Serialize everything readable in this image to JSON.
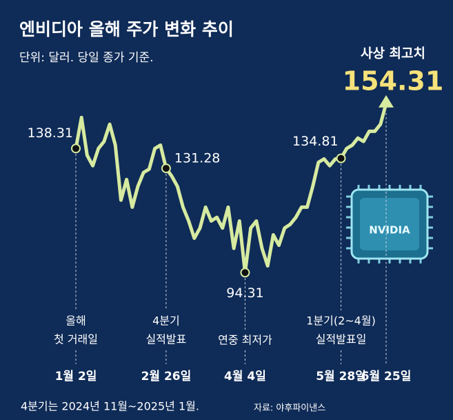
{
  "chart_data": {
    "type": "line",
    "title": "엔비디아 올해 주가 변화 추이",
    "subtitle": "단위: 달러. 당일 종가 기준.",
    "footnote": "4분기는 2024년 11월~2025년 1월.",
    "source": "자료: 야후파이낸스",
    "chip_label": "NVIDIA",
    "color": "#d6eaa0",
    "categories": [
      "1월 2일",
      null,
      null,
      null,
      null,
      null,
      null,
      null,
      null,
      null,
      null,
      null,
      null,
      null,
      null,
      null,
      "2월 26일",
      null,
      null,
      null,
      null,
      null,
      null,
      null,
      null,
      null,
      null,
      null,
      null,
      null,
      "4월 4일",
      null,
      null,
      null,
      null,
      null,
      null,
      null,
      null,
      null,
      null,
      null,
      null,
      null,
      null,
      null,
      null,
      "5월 28일",
      null,
      null,
      null,
      null,
      null,
      null,
      null,
      "6월 25일"
    ],
    "values": [
      138.31,
      149.3,
      135.9,
      132.2,
      138.3,
      140.8,
      146.9,
      139.5,
      120.0,
      127.3,
      117.5,
      124.9,
      129.8,
      131.0,
      138.3,
      139.5,
      131.28,
      128.5,
      124.9,
      117.5,
      112.6,
      106.5,
      110.1,
      117.5,
      112.6,
      113.9,
      110.1,
      117.5,
      102.9,
      112.6,
      94.31,
      110.1,
      112.6,
      102.9,
      96.7,
      107.7,
      104.0,
      110.1,
      111.4,
      113.9,
      117.5,
      117.5,
      124.9,
      133.4,
      134.6,
      132.2,
      134.6,
      134.81,
      138.3,
      139.5,
      142.0,
      140.8,
      144.4,
      144.4,
      146.9,
      154.31
    ],
    "event_labels": [
      [
        "올해",
        "첫 거래일"
      ],
      null,
      null,
      null,
      null,
      null,
      null,
      null,
      null,
      null,
      null,
      null,
      null,
      null,
      null,
      null,
      [
        "4분기",
        "실적발표"
      ],
      null,
      null,
      null,
      null,
      null,
      null,
      null,
      null,
      null,
      null,
      null,
      null,
      null,
      [
        "연중 최저가"
      ],
      null,
      null,
      null,
      null,
      null,
      null,
      null,
      null,
      null,
      null,
      null,
      null,
      null,
      null,
      null,
      null,
      [
        "1분기(2~4월)",
        "실적발표일"
      ],
      null,
      null,
      null,
      null,
      null,
      null,
      null,
      [
        "사상 최고치"
      ]
    ]
  }
}
